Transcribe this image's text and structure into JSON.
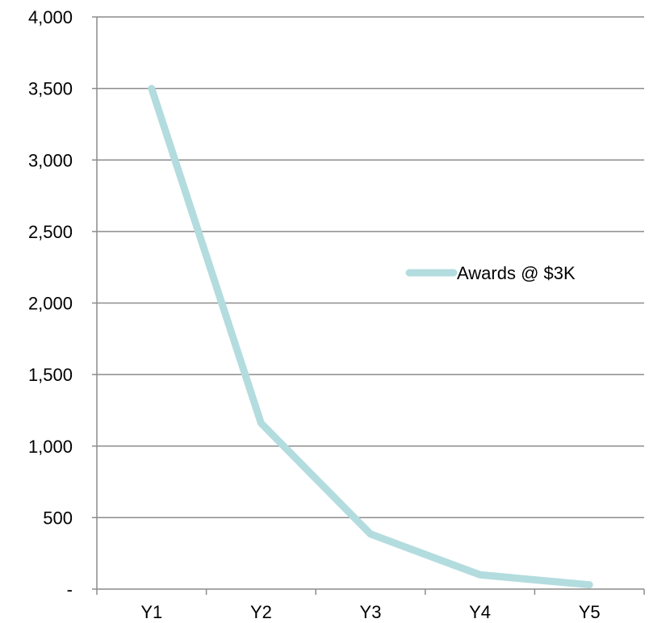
{
  "chart_data": {
    "type": "line",
    "title": "",
    "xlabel": "",
    "ylabel": "",
    "categories": [
      "Y1",
      "Y2",
      "Y3",
      "Y4",
      "Y5"
    ],
    "series": [
      {
        "name": "Awards @ $3K",
        "values": [
          3500,
          1160,
          385,
          100,
          30
        ],
        "color": "#b3dcdf"
      }
    ],
    "ylim": [
      0,
      4000
    ],
    "y_ticks": [
      0,
      500,
      1000,
      1500,
      2000,
      2500,
      3000,
      3500,
      4000
    ],
    "y_tick_labels": [
      "-",
      "500",
      "1,000",
      "1,500",
      "2,000",
      "2,500",
      "3,000",
      "3,500",
      "4,000"
    ],
    "grid": true,
    "legend_position": "right"
  }
}
